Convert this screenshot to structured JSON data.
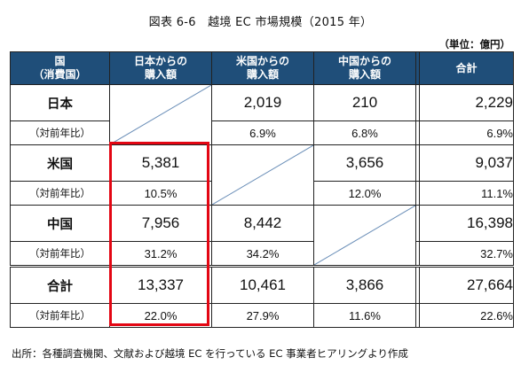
{
  "title": "図表 6-6　越境 EC 市場規模（2015 年）",
  "unit": "（単位：億円）",
  "headers": {
    "country": [
      "国",
      "（消費国）"
    ],
    "jp": [
      "日本からの",
      "購入額"
    ],
    "us": [
      "米国からの",
      "購入額"
    ],
    "cn": [
      "中国からの",
      "購入額"
    ],
    "total": [
      "合計"
    ]
  },
  "rows": {
    "japan": {
      "label": "日本",
      "sub": "（対前年比）",
      "jp": "",
      "us": "2,019",
      "cn": "210",
      "total": "2,229",
      "jp_pct": "",
      "us_pct": "6.9%",
      "cn_pct": "6.8%",
      "total_pct": "6.9%"
    },
    "usa": {
      "label": "米国",
      "sub": "（対前年比）",
      "jp": "5,381",
      "us": "",
      "cn": "3,656",
      "total": "9,037",
      "jp_pct": "10.5%",
      "us_pct": "",
      "cn_pct": "12.0%",
      "total_pct": "11.1%"
    },
    "china": {
      "label": "中国",
      "sub": "（対前年比）",
      "jp": "7,956",
      "us": "8,442",
      "cn": "",
      "total": "16,398",
      "jp_pct": "31.2%",
      "us_pct": "34.2%",
      "cn_pct": "",
      "total_pct": "32.7%"
    },
    "sum": {
      "label": "合計",
      "sub": "（対前年比）",
      "jp": "13,337",
      "us": "10,461",
      "cn": "3,866",
      "total": "27,664",
      "jp_pct": "22.0%",
      "us_pct": "27.9%",
      "cn_pct": "11.6%",
      "total_pct": "22.6%"
    }
  },
  "source": "出所：各種調査機関、文献および越境 EC を行っている EC 事業者ヒアリングより作成",
  "colors": {
    "header_bg": "#1f4e79",
    "highlight": "#e30613"
  }
}
